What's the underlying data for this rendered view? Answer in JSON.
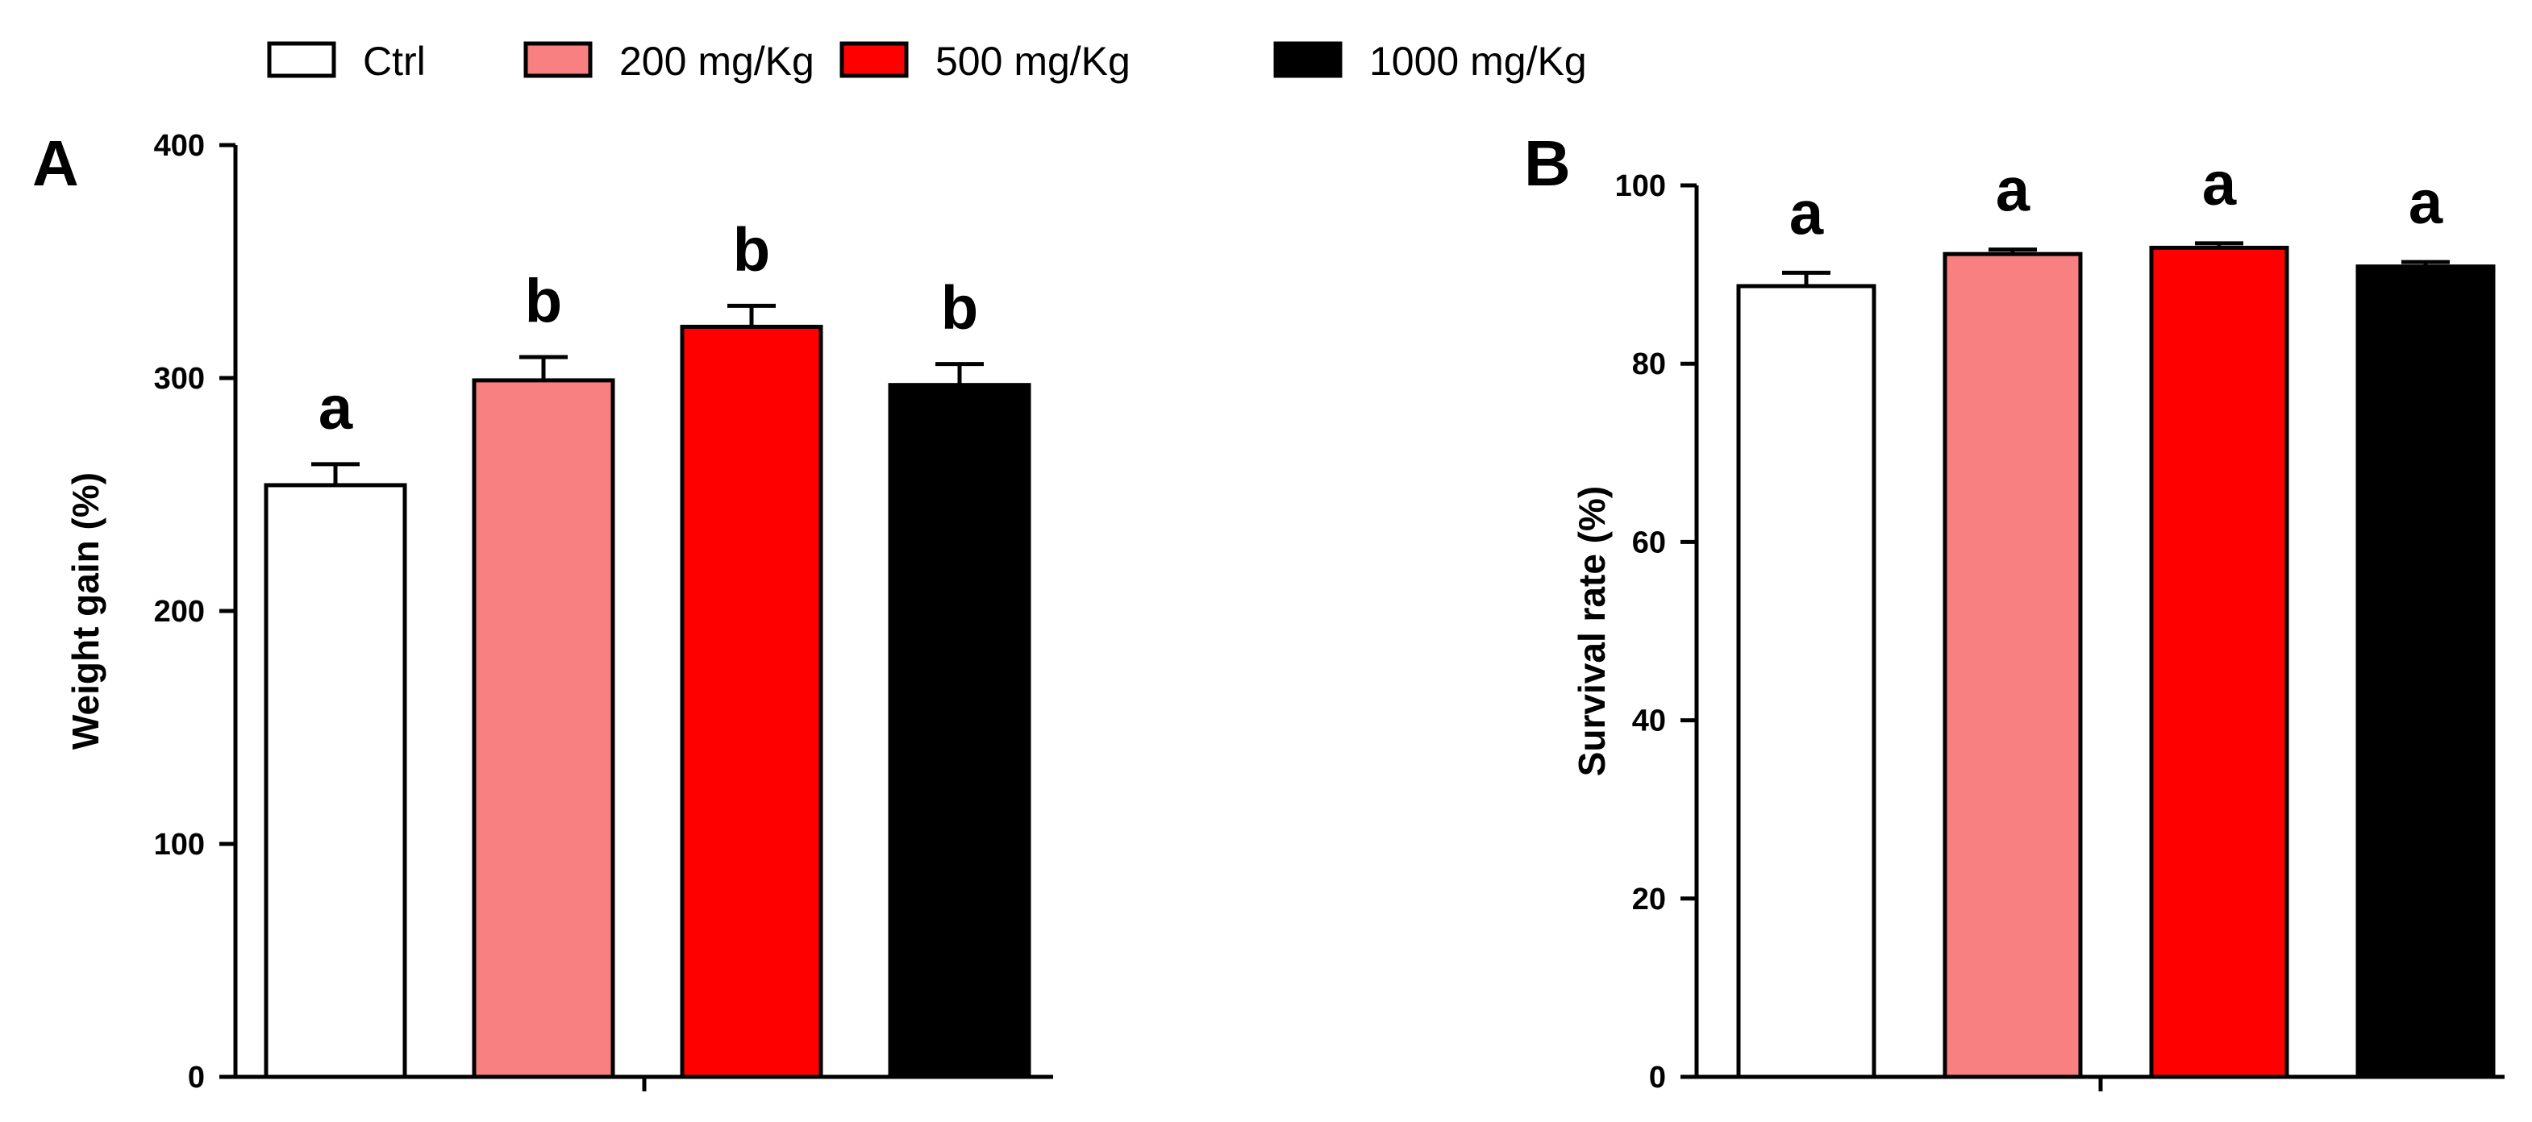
{
  "legend": [
    {
      "label": "Ctrl",
      "color": "#ffffff"
    },
    {
      "label": "200 mg/Kg",
      "color": "#f88080"
    },
    {
      "label": "500 mg/Kg",
      "color": "#ff0000"
    },
    {
      "label": "1000 mg/Kg",
      "color": "#000000"
    }
  ],
  "chart_data": [
    {
      "type": "bar",
      "panel": "A",
      "ylabel": "Weight gain (%)",
      "xlabel": "",
      "ylim": [
        0,
        400
      ],
      "yticks": [
        0,
        100,
        200,
        300,
        400
      ],
      "ytick_labels": [
        "0",
        "100",
        "200",
        "300",
        "400"
      ],
      "categories": [
        "Ctrl",
        "200 mg/Kg",
        "500 mg/Kg",
        "1000 mg/Kg"
      ],
      "values": [
        254,
        299,
        322,
        297
      ],
      "errors": [
        9,
        10,
        9,
        9
      ],
      "significance": [
        "a",
        "b",
        "b",
        "b"
      ],
      "colors": [
        "#ffffff",
        "#f88080",
        "#ff0000",
        "#000000"
      ]
    },
    {
      "type": "bar",
      "panel": "B",
      "ylabel": "Survival rate (%)",
      "xlabel": "",
      "ylim": [
        0,
        100
      ],
      "yticks": [
        0,
        20,
        40,
        60,
        80,
        100
      ],
      "ytick_labels": [
        "0",
        "20",
        "40",
        "60",
        "80",
        "100"
      ],
      "categories": [
        "Ctrl",
        "200 mg/Kg",
        "500 mg/Kg",
        "1000 mg/Kg"
      ],
      "values": [
        88.7,
        92.3,
        93.0,
        90.9
      ],
      "errors": [
        1.5,
        0.5,
        0.5,
        0.5
      ],
      "significance": [
        "a",
        "a",
        "a",
        "a"
      ],
      "colors": [
        "#ffffff",
        "#f88080",
        "#ff0000",
        "#000000"
      ]
    }
  ]
}
